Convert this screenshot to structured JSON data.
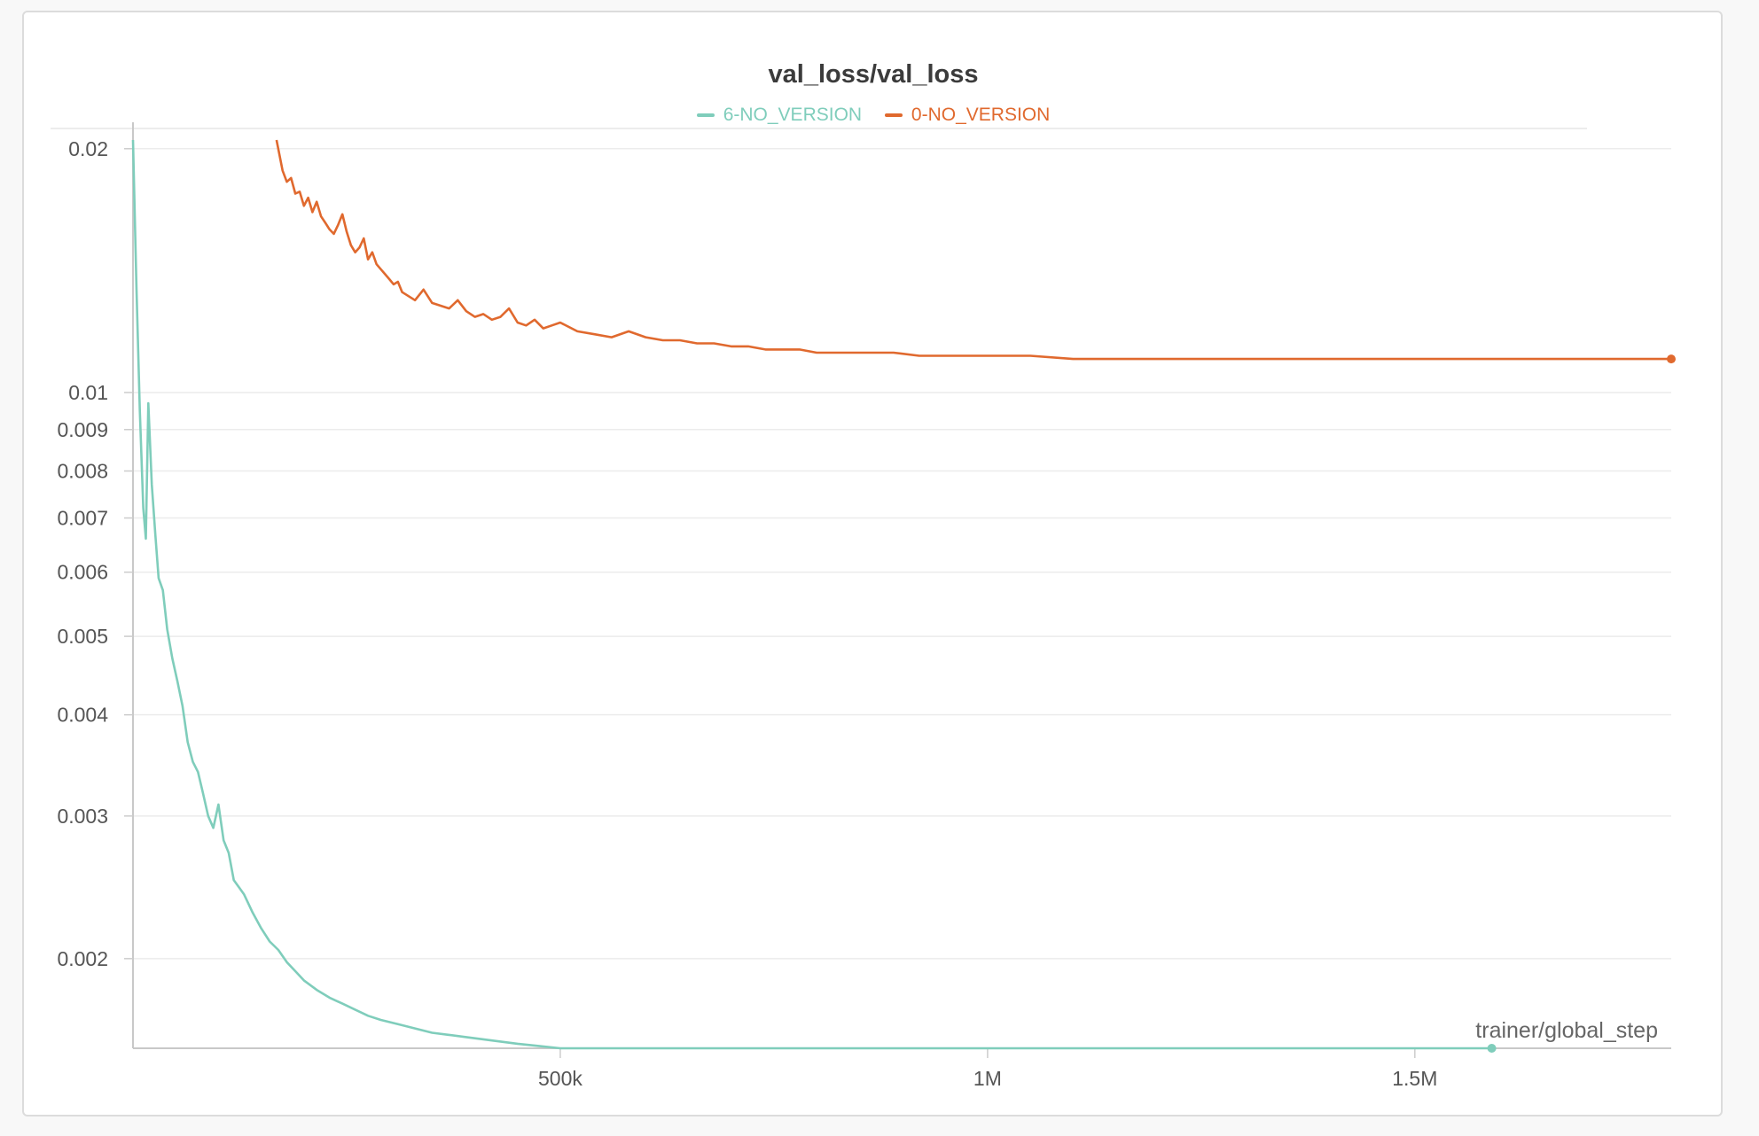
{
  "chart_data": {
    "type": "line",
    "title": "val_loss/val_loss",
    "xlabel": "trainer/global_step",
    "ylabel": "",
    "xlim": [
      0,
      1800000
    ],
    "ylim": [
      0.00155,
      0.0205
    ],
    "yscale": "log",
    "grid": true,
    "legend_position": "top-center",
    "x_ticks": [
      {
        "value": 500000,
        "label": "500k"
      },
      {
        "value": 1000000,
        "label": "1M"
      },
      {
        "value": 1500000,
        "label": "1.5M"
      }
    ],
    "y_ticks": [
      {
        "value": 0.02,
        "label": "0.02"
      },
      {
        "value": 0.01,
        "label": "0.01"
      },
      {
        "value": 0.009,
        "label": "0.009"
      },
      {
        "value": 0.008,
        "label": "0.008"
      },
      {
        "value": 0.007,
        "label": "0.007"
      },
      {
        "value": 0.006,
        "label": "0.006"
      },
      {
        "value": 0.005,
        "label": "0.005"
      },
      {
        "value": 0.004,
        "label": "0.004"
      },
      {
        "value": 0.003,
        "label": "0.003"
      },
      {
        "value": 0.002,
        "label": "0.002"
      }
    ],
    "series": [
      {
        "name": "6-NO_VERSION",
        "color": "#7fcdbb",
        "x": [
          0,
          4000,
          8000,
          12000,
          15000,
          18000,
          22000,
          26000,
          30000,
          35000,
          40000,
          46000,
          52000,
          58000,
          64000,
          70000,
          76000,
          82000,
          88000,
          94000,
          100000,
          106000,
          112000,
          118000,
          124000,
          130000,
          140000,
          150000,
          160000,
          170000,
          180000,
          190000,
          200000,
          215000,
          230000,
          245000,
          260000,
          275000,
          290000,
          310000,
          330000,
          350000,
          370000,
          390000,
          410000,
          430000,
          450000,
          475000,
          500000,
          530000,
          560000,
          590000,
          620000,
          650000,
          680000,
          710000,
          740000,
          770000,
          800000,
          830000,
          860000,
          890000,
          920000,
          950000,
          980000,
          1010000,
          1050000,
          1100000,
          1150000,
          1200000,
          1250000,
          1300000,
          1350000,
          1400000,
          1450000,
          1500000,
          1550000,
          1590000
        ],
        "y": [
          0.0205,
          0.0135,
          0.0095,
          0.0072,
          0.0066,
          0.0097,
          0.0077,
          0.0067,
          0.0059,
          0.0057,
          0.0051,
          0.0047,
          0.0044,
          0.0041,
          0.0037,
          0.0035,
          0.0034,
          0.0032,
          0.003,
          0.0029,
          0.0031,
          0.0028,
          0.0027,
          0.0025,
          0.00245,
          0.0024,
          0.00228,
          0.00218,
          0.0021,
          0.00205,
          0.00198,
          0.00193,
          0.00188,
          0.00183,
          0.00179,
          0.00176,
          0.00173,
          0.0017,
          0.00168,
          0.00166,
          0.00164,
          0.00162,
          0.00161,
          0.0016,
          0.00159,
          0.00158,
          0.00157,
          0.00156,
          0.00155,
          0.00155,
          0.00155,
          0.00155,
          0.00155,
          0.00155,
          0.00155,
          0.00155,
          0.00155,
          0.00155,
          0.00155,
          0.00155,
          0.00155,
          0.00155,
          0.00155,
          0.00155,
          0.00155,
          0.00155,
          0.00155,
          0.00155,
          0.00155,
          0.00155,
          0.00155,
          0.00155,
          0.00155,
          0.00155,
          0.00155,
          0.00155,
          0.00155,
          0.00155
        ]
      },
      {
        "name": "0-NO_VERSION",
        "color": "#e0692e",
        "x": [
          168000,
          175000,
          180000,
          185000,
          190000,
          195000,
          200000,
          205000,
          210000,
          215000,
          220000,
          225000,
          230000,
          235000,
          240000,
          245000,
          250000,
          255000,
          260000,
          265000,
          270000,
          275000,
          280000,
          285000,
          290000,
          295000,
          300000,
          305000,
          310000,
          315000,
          320000,
          330000,
          340000,
          350000,
          360000,
          370000,
          380000,
          390000,
          400000,
          410000,
          420000,
          430000,
          440000,
          450000,
          460000,
          470000,
          480000,
          490000,
          500000,
          520000,
          540000,
          560000,
          580000,
          600000,
          620000,
          640000,
          660000,
          680000,
          700000,
          720000,
          740000,
          760000,
          780000,
          800000,
          830000,
          860000,
          890000,
          920000,
          950000,
          980000,
          1010000,
          1050000,
          1100000,
          1150000,
          1200000,
          1250000,
          1300000,
          1350000,
          1400000,
          1450000,
          1500000,
          1550000,
          1600000,
          1650000,
          1700000,
          1750000,
          1800000
        ],
        "y": [
          0.0205,
          0.0188,
          0.0182,
          0.0184,
          0.0176,
          0.0177,
          0.017,
          0.0174,
          0.0167,
          0.0172,
          0.0165,
          0.0162,
          0.0159,
          0.0157,
          0.0161,
          0.0166,
          0.0158,
          0.0152,
          0.0149,
          0.0151,
          0.0155,
          0.0146,
          0.0149,
          0.0144,
          0.0142,
          0.014,
          0.0138,
          0.0136,
          0.0137,
          0.0133,
          0.0132,
          0.013,
          0.0134,
          0.0129,
          0.0128,
          0.0127,
          0.013,
          0.0126,
          0.0124,
          0.0125,
          0.0123,
          0.0124,
          0.0127,
          0.0122,
          0.0121,
          0.0123,
          0.012,
          0.0121,
          0.0122,
          0.0119,
          0.0118,
          0.0117,
          0.0119,
          0.0117,
          0.0116,
          0.0116,
          0.0115,
          0.0115,
          0.0114,
          0.0114,
          0.0113,
          0.0113,
          0.0113,
          0.0112,
          0.0112,
          0.0112,
          0.0112,
          0.0111,
          0.0111,
          0.0111,
          0.0111,
          0.0111,
          0.011,
          0.011,
          0.011,
          0.011,
          0.011,
          0.011,
          0.011,
          0.011,
          0.011,
          0.011,
          0.011,
          0.011,
          0.011,
          0.011,
          0.011
        ]
      }
    ]
  }
}
